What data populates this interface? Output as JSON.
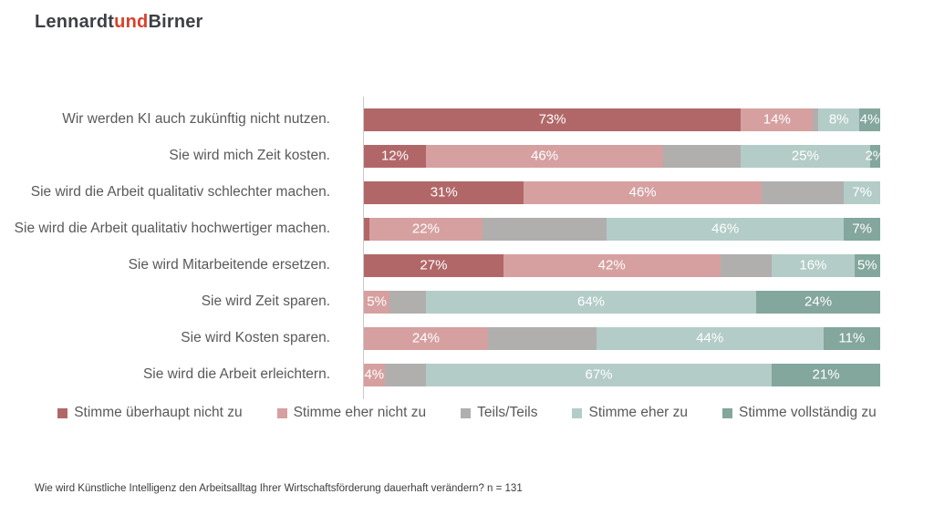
{
  "logo": {
    "part1": "Lennardt",
    "part2": "und",
    "part3": "Birner",
    "accent_color": "#d9402a",
    "text_color": "#3d4045"
  },
  "chart_data": {
    "type": "bar",
    "orientation": "horizontal-stacked",
    "unit": "%",
    "xlim": [
      0,
      100
    ],
    "grid": false,
    "legend_position": "bottom",
    "value_label_color": "#ffffff",
    "series": [
      {
        "name": "Stimme überhaupt nicht zu",
        "color": "#b16768"
      },
      {
        "name": "Stimme eher nicht zu",
        "color": "#d6a0a0"
      },
      {
        "name": "Teils/Teils",
        "color": "#b1aeae"
      },
      {
        "name": "Stimme eher zu",
        "color": "#b3ccc7"
      },
      {
        "name": "Stimme vollständig zu",
        "color": "#83a69d"
      }
    ],
    "rows": [
      {
        "label": "Wir werden KI auch zukünftig nicht nutzen.",
        "values": [
          73,
          14,
          1,
          8,
          4
        ],
        "shown_labels": [
          "73%",
          "14%",
          "",
          "8%",
          "4%"
        ]
      },
      {
        "label": "Sie wird mich Zeit kosten.",
        "values": [
          12,
          46,
          15,
          25,
          2
        ],
        "shown_labels": [
          "12%",
          "46%",
          "",
          "25%",
          "2%"
        ]
      },
      {
        "label": "Sie wird die Arbeit qualitativ schlechter machen.",
        "values": [
          31,
          46,
          16,
          7,
          0
        ],
        "shown_labels": [
          "31%",
          "46%",
          "",
          "7%",
          ""
        ]
      },
      {
        "label": "Sie wird die Arbeit qualitativ hochwertiger machen.",
        "values": [
          1,
          22,
          24,
          46,
          7
        ],
        "shown_labels": [
          "",
          "22%",
          "",
          "46%",
          "7%"
        ]
      },
      {
        "label": "Sie wird Mitarbeitende ersetzen.",
        "values": [
          27,
          42,
          10,
          16,
          5
        ],
        "shown_labels": [
          "27%",
          "42%",
          "",
          "16%",
          "5%"
        ]
      },
      {
        "label": "Sie wird Zeit sparen.",
        "values": [
          0,
          5,
          7,
          64,
          24
        ],
        "shown_labels": [
          "",
          "5%",
          "",
          "64%",
          "24%"
        ]
      },
      {
        "label": "Sie wird Kosten sparen.",
        "values": [
          0,
          24,
          21,
          44,
          11
        ],
        "shown_labels": [
          "",
          "24%",
          "",
          "44%",
          "11%"
        ]
      },
      {
        "label": "Sie wird die Arbeit erleichtern.",
        "values": [
          0,
          4,
          8,
          67,
          21
        ],
        "shown_labels": [
          "",
          "4%",
          "",
          "67%",
          "21%"
        ]
      }
    ]
  },
  "footer": {
    "text": "Wie wird Künstliche Intelligenz den Arbeitsalltag Ihrer Wirtschaftsförderung dauerhaft verändern? n = 131"
  }
}
